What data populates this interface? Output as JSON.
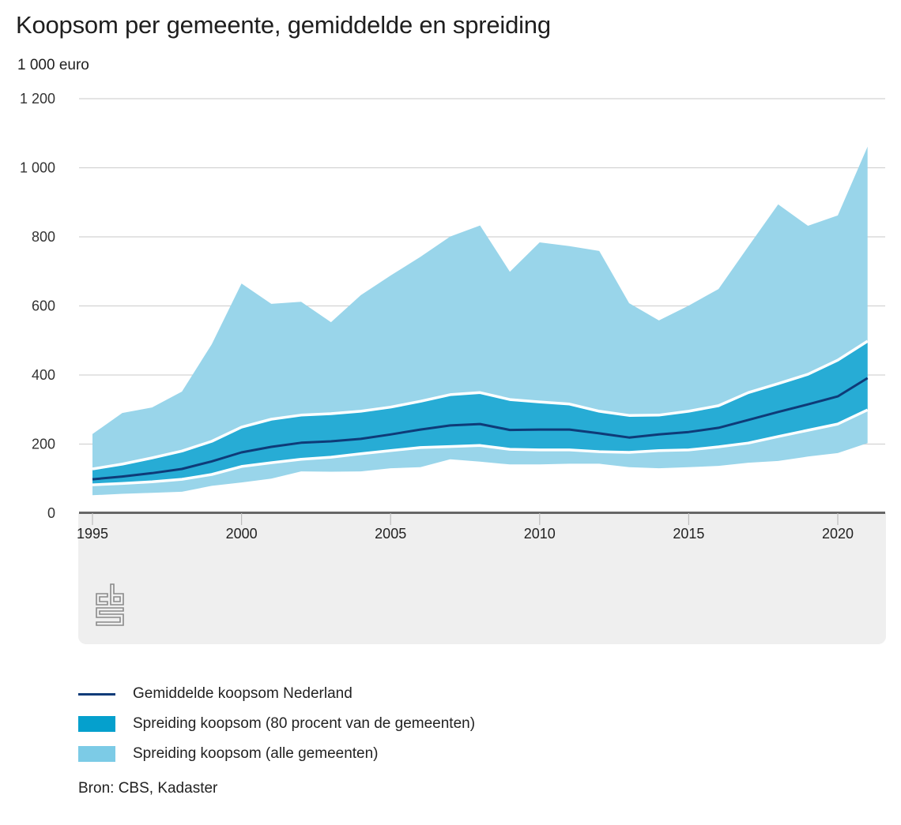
{
  "header": {
    "title": "Koopsom per gemeente, gemiddelde en spreiding",
    "unit": "1 000 euro"
  },
  "colors": {
    "mean_line": "#0e3b78",
    "band_80": "#27acd5",
    "band_all": "#99d5ea",
    "separator": "#ffffff",
    "grid": "#d3d3d3",
    "axis": "#666666",
    "panel": "#efefef"
  },
  "chart_data": {
    "type": "area",
    "title": "Koopsom per gemeente, gemiddelde en spreiding",
    "ylabel": "1 000 euro",
    "xlabel": "",
    "ylim": [
      0,
      1200
    ],
    "xlim": [
      1995,
      2021
    ],
    "grid": true,
    "yticks": [
      0,
      200,
      400,
      600,
      800,
      1000,
      1200
    ],
    "ytick_labels": [
      "0",
      "200",
      "400",
      "600",
      "800",
      "1 000",
      "1 200"
    ],
    "xticks": [
      1995,
      2000,
      2005,
      2010,
      2015,
      2020
    ],
    "xtick_labels": [
      "1995",
      "2000",
      "2005",
      "2010",
      "2015",
      "2020"
    ],
    "x": [
      1995,
      1996,
      1997,
      1998,
      1999,
      2000,
      2001,
      2002,
      2003,
      2004,
      2005,
      2006,
      2007,
      2008,
      2009,
      2010,
      2011,
      2012,
      2013,
      2014,
      2015,
      2016,
      2017,
      2018,
      2019,
      2020,
      2021
    ],
    "series": [
      {
        "name": "Spreiding koopsom (alle gemeenten) - maximum",
        "role": "all_max",
        "values": [
          229,
          290,
          306,
          352,
          489,
          665,
          606,
          612,
          553,
          631,
          688,
          742,
          801,
          833,
          699,
          784,
          773,
          759,
          608,
          558,
          601,
          649,
          772,
          894,
          832,
          862,
          1061
        ]
      },
      {
        "name": "Spreiding koopsom (80 procent van de gemeenten) - bovengrens",
        "role": "p90",
        "values": [
          128,
          142,
          160,
          180,
          208,
          249,
          272,
          284,
          288,
          295,
          307,
          324,
          343,
          349,
          329,
          322,
          316,
          295,
          283,
          284,
          295,
          311,
          349,
          375,
          402,
          443,
          498
        ]
      },
      {
        "name": "Gemiddelde koopsom Nederland",
        "role": "mean",
        "values": [
          98,
          106,
          116,
          128,
          150,
          176,
          192,
          204,
          208,
          215,
          228,
          242,
          254,
          258,
          241,
          242,
          242,
          231,
          219,
          228,
          235,
          247,
          270,
          293,
          315,
          338,
          391
        ]
      },
      {
        "name": "Spreiding koopsom (80 procent van de gemeenten) - ondergrens",
        "role": "p10",
        "values": [
          82,
          86,
          91,
          98,
          112,
          135,
          146,
          156,
          162,
          172,
          181,
          190,
          193,
          196,
          185,
          183,
          183,
          178,
          176,
          181,
          183,
          192,
          203,
          222,
          240,
          258,
          299
        ]
      },
      {
        "name": "Spreiding koopsom (alle gemeenten) - minimum",
        "role": "all_min",
        "values": [
          52,
          56,
          59,
          62,
          79,
          89,
          100,
          121,
          120,
          121,
          130,
          133,
          156,
          149,
          141,
          141,
          143,
          143,
          133,
          130,
          133,
          137,
          146,
          151,
          164,
          174,
          203
        ]
      }
    ],
    "legend_position": "bottom-left",
    "legend": [
      {
        "label": "Gemiddelde koopsom Nederland",
        "kind": "line",
        "color": "#0e3b78"
      },
      {
        "label": "Spreiding koopsom (80 procent van de gemeenten)",
        "kind": "box",
        "color": "#05a0cd"
      },
      {
        "label": "Spreiding koopsom (alle gemeenten)",
        "kind": "box",
        "color": "#7ccbe6"
      }
    ]
  },
  "logo": {
    "name": "CBS",
    "icon": "cbs-logo-icon"
  },
  "source": "Bron: CBS, Kadaster"
}
